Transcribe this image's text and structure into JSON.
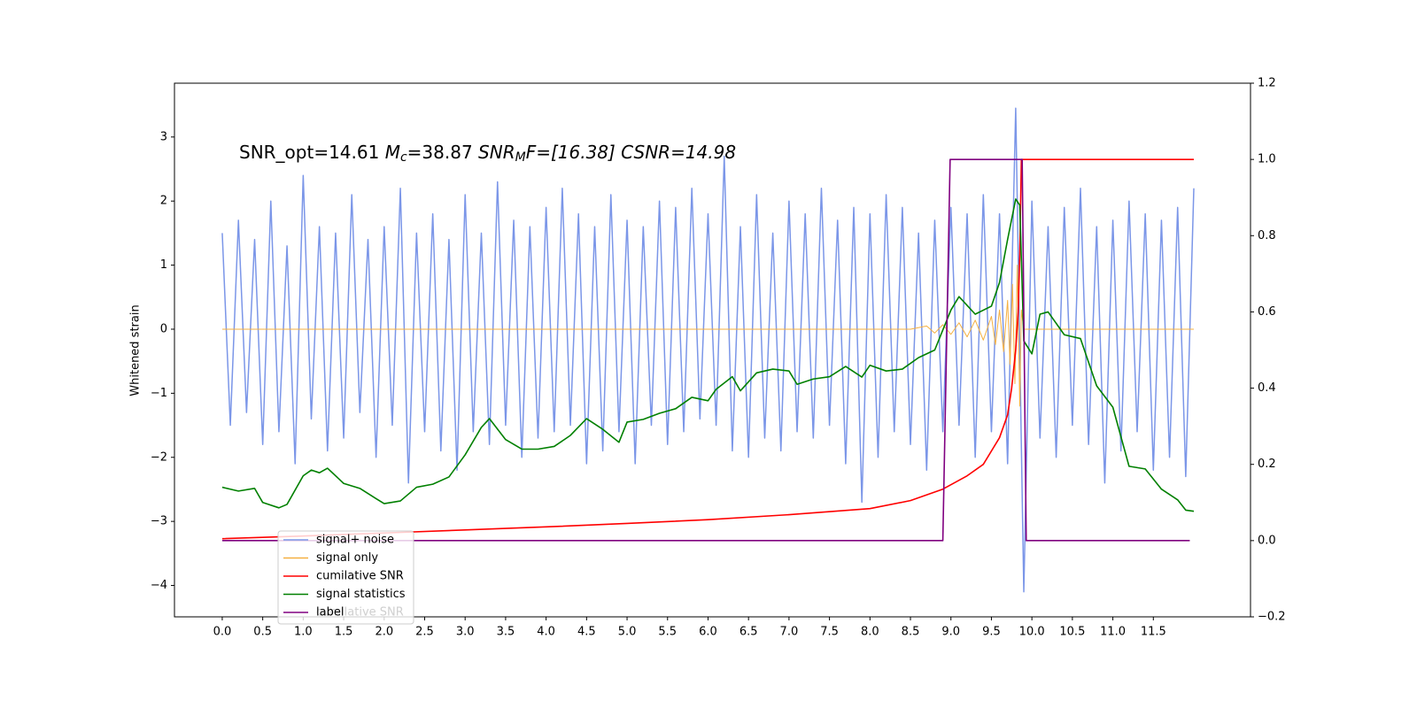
{
  "chart_data": {
    "type": "line",
    "annotation_parts": [
      "SNR_opt=14.61 ",
      "M",
      "c",
      "=38.87  ",
      "SNR",
      "M",
      "F=[16.38] CSNR=14.98"
    ],
    "ylabel": "Whitened strain",
    "xlim": [
      -0.59,
      12.7
    ],
    "ylim": [
      -4.49,
      3.84
    ],
    "y2lim": [
      -0.2,
      1.2
    ],
    "xticks": [
      {
        "value": 0,
        "label": "0.0"
      },
      {
        "value": 0.5,
        "label": "0.5"
      },
      {
        "value": 1,
        "label": "1.0"
      },
      {
        "value": 1.5,
        "label": "1.5"
      },
      {
        "value": 2,
        "label": "2.0"
      },
      {
        "value": 2.5,
        "label": "2.5"
      },
      {
        "value": 3,
        "label": "3.0"
      },
      {
        "value": 3.5,
        "label": "3.5"
      },
      {
        "value": 4,
        "label": "4.0"
      },
      {
        "value": 4.5,
        "label": "4.5"
      },
      {
        "value": 5,
        "label": "5.0"
      },
      {
        "value": 5.5,
        "label": "5.5"
      },
      {
        "value": 6,
        "label": "6.0"
      },
      {
        "value": 6.5,
        "label": "6.5"
      },
      {
        "value": 7,
        "label": "7.0"
      },
      {
        "value": 7.5,
        "label": "7.5"
      },
      {
        "value": 8,
        "label": "8.0"
      },
      {
        "value": 8.5,
        "label": "8.5"
      },
      {
        "value": 9,
        "label": "9.0"
      },
      {
        "value": 9.5,
        "label": "9.5"
      },
      {
        "value": 10,
        "label": "10.0"
      },
      {
        "value": 10.5,
        "label": "10.5"
      },
      {
        "value": 11,
        "label": "11.0"
      },
      {
        "value": 11.5,
        "label": "11.5"
      }
    ],
    "yticks": [
      {
        "value": -4,
        "label": "−4"
      },
      {
        "value": -3,
        "label": "−3"
      },
      {
        "value": -2,
        "label": "−2"
      },
      {
        "value": -1,
        "label": "−1"
      },
      0,
      1,
      2,
      3
    ],
    "y2ticks": [
      {
        "value": -0.2,
        "label": "−0.2"
      },
      {
        "value": 0,
        "label": "0.0"
      },
      {
        "value": 0.2,
        "label": "0.2"
      },
      {
        "value": 0.4,
        "label": "0.4"
      },
      {
        "value": 0.6,
        "label": "0.6"
      },
      {
        "value": 0.8,
        "label": "0.8"
      },
      {
        "value": 1,
        "label": "1.0"
      },
      {
        "value": 1.2,
        "label": "1.2"
      }
    ],
    "legend": "lower left",
    "faded_legend_text": "cumilative SNR",
    "series": [
      {
        "name": "signal+ noise",
        "color": "#7b96e8",
        "axis": "y",
        "x": [
          0,
          0.1,
          0.2,
          0.3,
          0.4,
          0.5,
          0.6,
          0.7,
          0.8,
          0.9,
          1,
          1.1,
          1.2,
          1.3,
          1.4,
          1.5,
          1.6,
          1.7,
          1.8,
          1.9,
          2,
          2.1,
          2.2,
          2.3,
          2.4,
          2.5,
          2.6,
          2.7,
          2.8,
          2.9,
          3,
          3.1,
          3.2,
          3.3,
          3.4,
          3.5,
          3.6,
          3.7,
          3.8,
          3.9,
          4,
          4.1,
          4.2,
          4.3,
          4.4,
          4.5,
          4.6,
          4.7,
          4.8,
          4.9,
          5,
          5.1,
          5.2,
          5.3,
          5.4,
          5.5,
          5.6,
          5.7,
          5.8,
          5.9,
          6,
          6.1,
          6.2,
          6.3,
          6.4,
          6.5,
          6.6,
          6.7,
          6.8,
          6.9,
          7,
          7.1,
          7.2,
          7.3,
          7.4,
          7.5,
          7.6,
          7.7,
          7.8,
          7.9,
          8,
          8.1,
          8.2,
          8.3,
          8.4,
          8.5,
          8.6,
          8.7,
          8.8,
          8.9,
          9,
          9.1,
          9.2,
          9.3,
          9.4,
          9.5,
          9.6,
          9.7,
          9.8,
          9.9,
          10,
          10.1,
          10.2,
          10.3,
          10.4,
          10.5,
          10.6,
          10.7,
          10.8,
          10.9,
          11,
          11.1,
          11.2,
          11.3,
          11.4,
          11.5,
          11.6,
          11.7,
          11.8,
          11.9,
          12
        ],
        "values": [
          1.5,
          -1.5,
          1.7,
          -1.3,
          1.4,
          -1.8,
          2.0,
          -1.6,
          1.3,
          -2.1,
          2.4,
          -1.4,
          1.6,
          -1.9,
          1.5,
          -1.7,
          2.1,
          -1.3,
          1.4,
          -2.0,
          1.6,
          -1.5,
          2.2,
          -2.4,
          1.5,
          -1.6,
          1.8,
          -1.9,
          1.4,
          -2.2,
          2.1,
          -1.6,
          1.5,
          -1.8,
          2.3,
          -1.5,
          1.7,
          -2.0,
          1.6,
          -1.7,
          1.9,
          -1.6,
          2.2,
          -1.5,
          1.8,
          -2.1,
          1.6,
          -1.9,
          2.1,
          -1.6,
          1.7,
          -2.1,
          1.6,
          -1.5,
          2.0,
          -1.8,
          1.9,
          -1.6,
          2.2,
          -1.4,
          1.8,
          -1.5,
          2.7,
          -1.9,
          1.6,
          -2.0,
          2.1,
          -1.7,
          1.5,
          -1.9,
          2.0,
          -1.6,
          1.8,
          -1.7,
          2.2,
          -1.5,
          1.7,
          -2.1,
          1.9,
          -2.7,
          1.8,
          -2.0,
          2.1,
          -1.6,
          1.9,
          -1.8,
          1.5,
          -2.2,
          1.7,
          -1.6,
          1.9,
          -1.5,
          1.8,
          -2.0,
          2.1,
          -1.6,
          1.8,
          -2.1,
          3.45,
          -4.1,
          2.0,
          -1.7,
          1.6,
          -2.0,
          1.9,
          -1.5,
          2.2,
          -1.8,
          1.6,
          -2.4,
          1.7,
          -1.9,
          2.0,
          -1.6,
          1.8,
          -2.2,
          1.7,
          -2.0,
          1.9,
          -2.3,
          2.2
        ]
      },
      {
        "name": "signal only",
        "color": "#f5b041",
        "axis": "y",
        "x": [
          0,
          8.5,
          8.7,
          8.8,
          8.9,
          9.0,
          9.1,
          9.2,
          9.3,
          9.4,
          9.5,
          9.55,
          9.6,
          9.65,
          9.7,
          9.73,
          9.76,
          9.79,
          9.82,
          9.85,
          9.87,
          9.9,
          12.0
        ],
        "values": [
          0,
          0,
          0.05,
          -0.06,
          0.07,
          -0.08,
          0.1,
          -0.12,
          0.14,
          -0.17,
          0.2,
          -0.24,
          0.3,
          -0.35,
          0.45,
          -0.55,
          0.7,
          -0.85,
          1.0,
          -1.2,
          0.3,
          0,
          0
        ]
      },
      {
        "name": "cumilative SNR",
        "color": "#ff0000",
        "axis": "y2",
        "x": [
          0,
          1,
          2,
          3,
          4,
          5,
          6,
          7,
          8,
          8.5,
          8.9,
          9.2,
          9.4,
          9.6,
          9.7,
          9.75,
          9.8,
          9.83,
          9.85,
          9.87,
          12.0
        ],
        "values": [
          0.005,
          0.012,
          0.02,
          0.028,
          0.036,
          0.045,
          0.055,
          0.068,
          0.084,
          0.105,
          0.135,
          0.17,
          0.2,
          0.27,
          0.33,
          0.4,
          0.5,
          0.6,
          0.75,
          1.0,
          1.0
        ]
      },
      {
        "name": "signal statistics",
        "color": "#008000",
        "axis": "y2",
        "x": [
          0,
          0.2,
          0.4,
          0.5,
          0.7,
          0.8,
          1.0,
          1.1,
          1.2,
          1.3,
          1.5,
          1.7,
          1.9,
          2.0,
          2.2,
          2.4,
          2.6,
          2.8,
          3.0,
          3.2,
          3.3,
          3.5,
          3.7,
          3.9,
          4.1,
          4.3,
          4.5,
          4.7,
          4.9,
          5.0,
          5.2,
          5.4,
          5.6,
          5.8,
          6.0,
          6.1,
          6.3,
          6.4,
          6.6,
          6.8,
          7.0,
          7.1,
          7.3,
          7.5,
          7.7,
          7.9,
          8.0,
          8.2,
          8.4,
          8.6,
          8.8,
          9.0,
          9.1,
          9.3,
          9.5,
          9.6,
          9.7,
          9.8,
          9.85,
          9.9,
          10.0,
          10.1,
          10.2,
          10.4,
          10.6,
          10.8,
          11.0,
          11.2,
          11.4,
          11.6,
          11.8,
          11.9,
          12.0
        ],
        "values": [
          0.14,
          0.13,
          0.137,
          0.1,
          0.086,
          0.095,
          0.17,
          0.185,
          0.178,
          0.19,
          0.15,
          0.137,
          0.11,
          0.097,
          0.104,
          0.14,
          0.148,
          0.167,
          0.225,
          0.297,
          0.32,
          0.265,
          0.24,
          0.24,
          0.247,
          0.276,
          0.32,
          0.292,
          0.258,
          0.311,
          0.318,
          0.334,
          0.346,
          0.376,
          0.367,
          0.397,
          0.43,
          0.393,
          0.44,
          0.45,
          0.445,
          0.41,
          0.424,
          0.43,
          0.457,
          0.429,
          0.46,
          0.445,
          0.45,
          0.48,
          0.5,
          0.605,
          0.64,
          0.594,
          0.615,
          0.677,
          0.79,
          0.896,
          0.88,
          0.524,
          0.49,
          0.594,
          0.6,
          0.54,
          0.53,
          0.406,
          0.35,
          0.195,
          0.188,
          0.135,
          0.107,
          0.08,
          0.077
        ]
      },
      {
        "name": "label",
        "color": "#800080",
        "axis": "y2",
        "x": [
          0,
          8.9,
          8.99,
          9.88,
          9.93,
          11.95
        ],
        "values": [
          0,
          0,
          1,
          1,
          0,
          0
        ]
      }
    ]
  }
}
